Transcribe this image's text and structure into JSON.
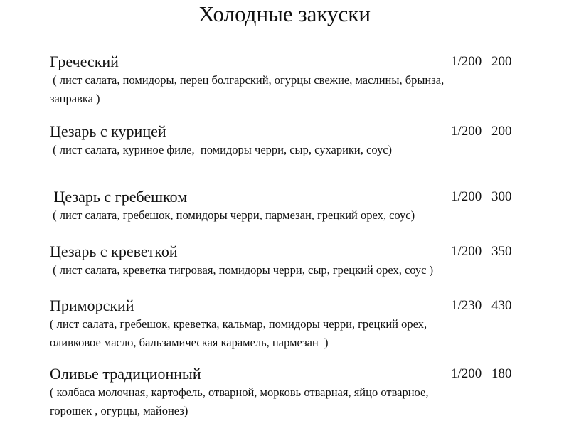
{
  "title": "Холодные закуски",
  "items": [
    {
      "name": "Греческий",
      "portion": "1/200",
      "price": "200",
      "desc": [
        " ( лист салата, помидоры, перец болгарский, огурцы свежие, маслины, брынза,",
        "заправка )"
      ]
    },
    {
      "name": "Цезарь с курицей",
      "portion": "1/200",
      "price": "200",
      "desc": [
        " ( лист салата, куриное филе,  помидоры черри, сыр, сухарики, соус)"
      ]
    },
    {
      "name": " Цезарь с гребешком",
      "portion": "1/200",
      "price": "300",
      "desc": [
        " ( лист салата, гребешок, помидоры черри, пармезан, грецкий орех, соус)"
      ]
    },
    {
      "name": "Цезарь с креветкой",
      "portion": "1/200",
      "price": "350",
      "desc": [
        " ( лист салата, креветка тигровая, помидоры черри, сыр, грецкий орех, соус )"
      ]
    },
    {
      "name": "Приморский",
      "portion": "1/230",
      "price": "430",
      "desc": [
        "( лист салата, гребешок, креветка, кальмар, помидоры черри, грецкий орех,",
        "оливковое масло, бальзамическая карамель, пармезан  )"
      ]
    },
    {
      "name": "Оливье традиционный",
      "portion": "1/200",
      "price": "180",
      "desc": [
        "( колбаса молочная, картофель, отварной, морковь отварная, яйцо отварное,",
        "горошек , огурцы, майонез)"
      ]
    }
  ]
}
